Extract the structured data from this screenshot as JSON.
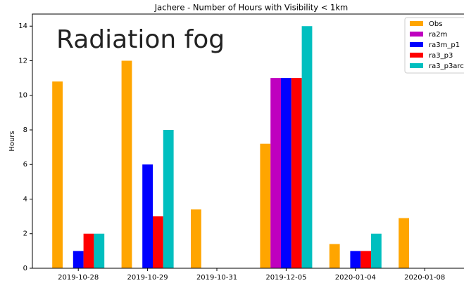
{
  "chart_data": {
    "type": "bar",
    "title": "Jachere - Number of Hours with Visibility < 1km",
    "ylabel": "Hours",
    "annotation": "Radiation fog",
    "categories": [
      "2019-10-28",
      "2019-10-29",
      "2019-10-31",
      "2019-12-05",
      "2020-01-04",
      "2020-01-08"
    ],
    "series": [
      {
        "name": "Obs",
        "color": "#ffa500",
        "values": [
          10.8,
          12,
          3.4,
          7.2,
          1.4,
          2.9
        ]
      },
      {
        "name": "ra2m",
        "color": "#bf00bf",
        "values": [
          0,
          0,
          0,
          11,
          0,
          0
        ]
      },
      {
        "name": "ra3m_p1",
        "color": "#0000ff",
        "values": [
          1,
          6,
          0,
          11,
          1,
          0
        ]
      },
      {
        "name": "ra3_p3",
        "color": "#ff0000",
        "values": [
          2,
          3,
          0,
          11,
          1,
          0
        ]
      },
      {
        "name": "ra3_p3arcl",
        "color": "#00bfbf",
        "values": [
          2,
          8,
          0,
          14,
          2,
          0
        ]
      }
    ],
    "ylim": [
      0,
      14.7
    ],
    "yticks": [
      0,
      2,
      4,
      6,
      8,
      10,
      12,
      14
    ],
    "legend": "upper right"
  }
}
